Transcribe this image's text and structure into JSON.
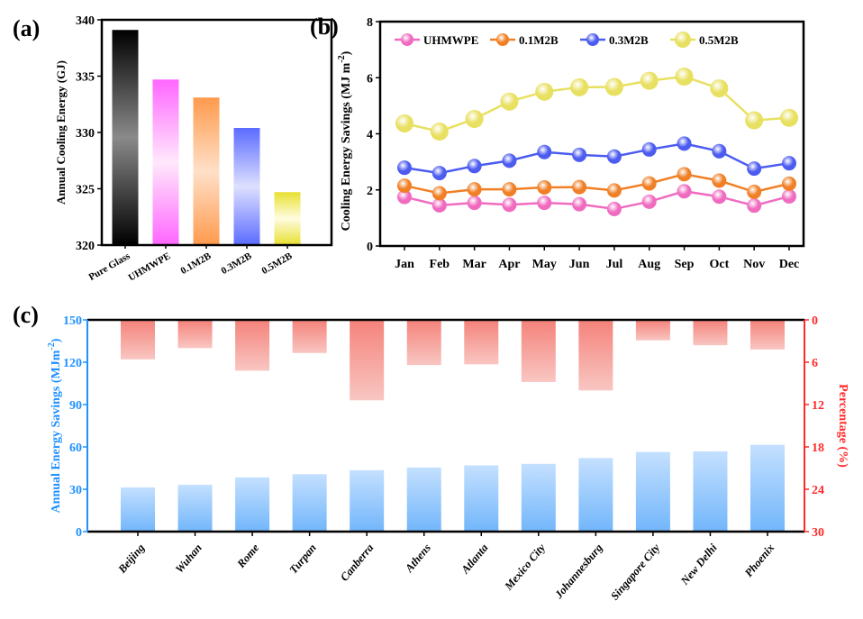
{
  "chart_data": [
    {
      "panel": "(a)",
      "type": "bar",
      "categories": [
        "Pure Glass",
        "UHMWPE",
        "0.1M2B",
        "0.3M2B",
        "0.5M2B"
      ],
      "values": [
        339.1,
        334.7,
        333.1,
        330.4,
        324.7
      ],
      "colors": [
        "#000000",
        "#ff66ff",
        "#ff9a4d",
        "#5b6bff",
        "#e8e030"
      ],
      "xlabel": "",
      "ylabel": "Annual Cooling Energy (GJ)",
      "ylim": [
        320,
        340
      ],
      "yticks": [
        320,
        325,
        330,
        335,
        340
      ],
      "grid": false
    },
    {
      "panel": "(b)",
      "type": "line",
      "categories": [
        "Jan",
        "Feb",
        "Mar",
        "Apr",
        "May",
        "Jun",
        "Jul",
        "Aug",
        "Sep",
        "Oct",
        "Nov",
        "Dec"
      ],
      "series": [
        {
          "name": "UHMWPE",
          "color": "#f06bc0",
          "values": [
            1.75,
            1.45,
            1.54,
            1.47,
            1.54,
            1.49,
            1.32,
            1.58,
            1.95,
            1.76,
            1.44,
            1.77
          ]
        },
        {
          "name": "0.1M2B",
          "color": "#f07f25",
          "values": [
            2.15,
            1.88,
            2.02,
            2.02,
            2.09,
            2.1,
            1.98,
            2.23,
            2.56,
            2.33,
            1.93,
            2.22
          ]
        },
        {
          "name": "0.3M2B",
          "color": "#4c5cf0",
          "values": [
            2.79,
            2.6,
            2.85,
            3.04,
            3.35,
            3.25,
            3.19,
            3.44,
            3.65,
            3.38,
            2.76,
            2.95
          ]
        },
        {
          "name": "0.5M2B",
          "color": "#e8e060",
          "values": [
            4.37,
            4.08,
            4.53,
            5.15,
            5.5,
            5.66,
            5.67,
            5.89,
            6.04,
            5.62,
            4.48,
            4.57
          ]
        }
      ],
      "xlabel": "",
      "ylabel": "Cooling Energy Savings (MJ m",
      "ylabel_sup": "-2",
      "ylabel_close": ")",
      "ylim": [
        0,
        8
      ],
      "yticks": [
        0,
        2,
        4,
        6,
        8
      ],
      "legend": "top",
      "grid": false
    },
    {
      "panel": "(c)",
      "type": "bar",
      "categories": [
        "Beijing",
        "Wuhan",
        "Rome",
        "Turpan",
        "Canberra",
        "Athens",
        "Atlanta",
        "Mexico City",
        "Johannesburg",
        "Singapore City",
        "New Delhi",
        "Phoenix"
      ],
      "series": [
        {
          "axis": "left",
          "color": "#6fb4fb",
          "values": [
            31.3,
            33.2,
            38.4,
            40.7,
            43.5,
            45.4,
            46.9,
            48.0,
            52.1,
            56.4,
            56.8,
            61.5
          ]
        },
        {
          "axis": "right",
          "color": "#f4827a",
          "values": [
            5.6,
            4.0,
            7.2,
            4.7,
            11.4,
            6.4,
            6.3,
            8.8,
            10.0,
            2.9,
            3.6,
            4.2
          ]
        }
      ],
      "ylabel": "Annual  Energy Savings (MJm",
      "ylabel_sup": "-2",
      "ylabel_close": ")",
      "ylim": [
        0,
        150
      ],
      "yticks": [
        0,
        30,
        60,
        90,
        120,
        150
      ],
      "y2label": "Percentage (%)",
      "y2lim": [
        30,
        0
      ],
      "y2ticks": [
        0,
        6,
        12,
        18,
        24,
        30
      ],
      "left_axis_color": "#1e90ff",
      "right_axis_color": "#ff2a2a",
      "grid": false
    }
  ]
}
